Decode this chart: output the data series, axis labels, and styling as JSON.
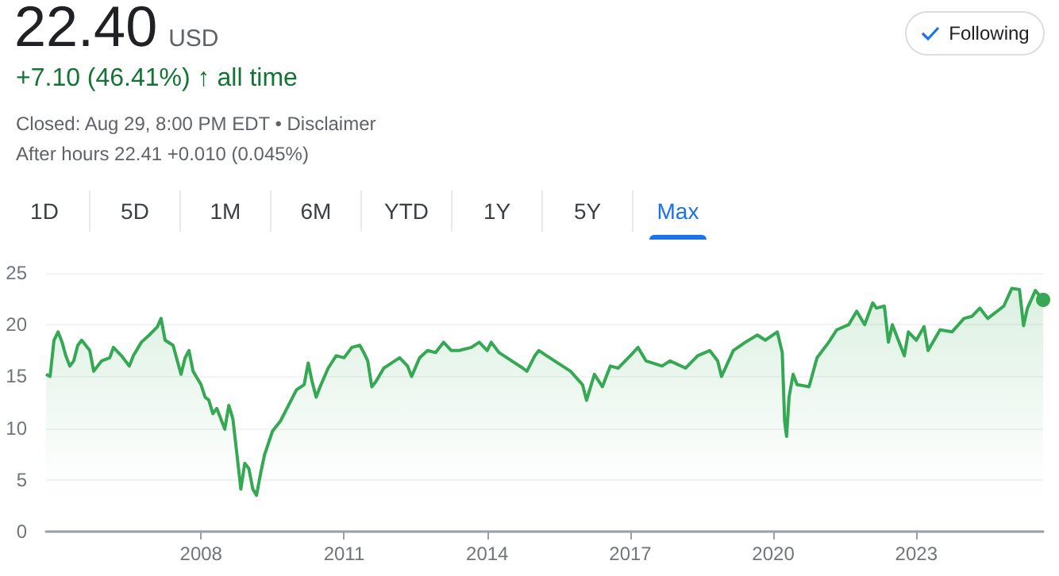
{
  "chart_data": {
    "type": "area",
    "title": "22.40",
    "subtitle": "USD",
    "annotations": [
      "+7.10 (46.41%) ↑ all time",
      "Closed: Aug 29, 8:00 PM EDT • Disclaimer",
      "After hours 22.41 +0.010 (0.045%)",
      "Following",
      "1D",
      "5D",
      "1M",
      "6M",
      "YTD",
      "1Y",
      "5Y",
      "Max"
    ],
    "x": [
      "2004-10",
      "2004-11",
      "2004-12",
      "2005-01",
      "2005-02",
      "2005-03",
      "2005-04",
      "2005-05",
      "2005-06",
      "2005-07",
      "2005-09",
      "2005-10",
      "2005-12",
      "2006-02",
      "2006-03",
      "2006-05",
      "2006-07",
      "2006-08",
      "2006-10",
      "2006-12",
      "2007-02",
      "2007-03",
      "2007-04",
      "2007-06",
      "2007-08",
      "2007-09",
      "2007-10",
      "2007-11",
      "2008-01",
      "2008-02",
      "2008-03",
      "2008-04",
      "2008-05",
      "2008-07",
      "2008-08",
      "2008-09",
      "2008-10",
      "2008-11",
      "2008-12",
      "2009-01",
      "2009-02",
      "2009-03",
      "2009-04",
      "2009-05",
      "2009-07",
      "2009-09",
      "2009-11",
      "2010-01",
      "2010-03",
      "2010-04",
      "2010-05",
      "2010-06",
      "2010-07",
      "2010-09",
      "2010-11",
      "2011-01",
      "2011-03",
      "2011-05",
      "2011-06",
      "2011-07",
      "2011-08",
      "2011-09",
      "2011-11",
      "2012-01",
      "2012-03",
      "2012-05",
      "2012-06",
      "2012-08",
      "2012-10",
      "2012-12",
      "2013-02",
      "2013-04",
      "2013-06",
      "2013-09",
      "2013-11",
      "2014-01",
      "2014-02",
      "2014-04",
      "2014-06",
      "2014-10",
      "2014-11",
      "2015-01",
      "2015-02",
      "2015-04",
      "2015-08",
      "2015-10",
      "2016-01",
      "2016-02",
      "2016-04",
      "2016-06",
      "2016-08",
      "2016-10",
      "2017-01",
      "2017-03",
      "2017-05",
      "2017-09",
      "2017-11",
      "2018-03",
      "2018-06",
      "2018-09",
      "2018-11",
      "2018-12",
      "2019-03",
      "2019-06",
      "2019-09",
      "2019-11",
      "2020-02",
      "2020-03-10",
      "2020-03-28",
      "2020-04-12",
      "2020-05-01",
      "2020-06",
      "2020-07",
      "2020-10",
      "2020-12",
      "2021-03",
      "2021-05",
      "2021-08",
      "2021-10",
      "2021-12",
      "2022-02",
      "2022-03",
      "2022-05",
      "2022-06",
      "2022-07",
      "2022-10",
      "2022-11",
      "2023-01",
      "2023-03",
      "2023-04",
      "2023-07",
      "2023-10",
      "2024-01",
      "2024-03",
      "2024-05",
      "2024-07",
      "2024-11",
      "2025-01",
      "2025-03",
      "2025-04",
      "2025-05",
      "2025-07",
      "2025-08-29"
    ],
    "series": [
      {
        "color": "#34a853",
        "values": [
          15.2,
          15.0,
          18.5,
          19.3,
          18.3,
          17.0,
          16.0,
          16.5,
          18.0,
          18.5,
          17.5,
          15.5,
          16.5,
          16.8,
          17.8,
          17.0,
          16.0,
          17.0,
          18.3,
          19.0,
          19.8,
          20.6,
          18.5,
          18.0,
          15.2,
          16.8,
          17.5,
          15.5,
          14.2,
          13.0,
          12.7,
          11.4,
          11.9,
          9.9,
          12.2,
          10.9,
          7.6,
          4.1,
          6.6,
          6.1,
          4.1,
          3.5,
          5.6,
          7.4,
          9.7,
          10.7,
          12.2,
          13.7,
          14.2,
          16.3,
          14.5,
          13.0,
          14.0,
          15.8,
          17.0,
          16.8,
          17.8,
          18.0,
          17.3,
          16.5,
          14.0,
          14.5,
          15.8,
          16.3,
          16.8,
          16.0,
          15.0,
          16.8,
          17.5,
          17.3,
          18.3,
          17.5,
          17.5,
          17.8,
          18.3,
          17.5,
          18.3,
          17.3,
          16.8,
          15.8,
          15.5,
          17.0,
          17.5,
          17.0,
          16.0,
          15.5,
          14.2,
          12.7,
          15.2,
          14.0,
          16.0,
          15.8,
          17.0,
          17.8,
          16.5,
          16.0,
          16.5,
          15.8,
          17.0,
          17.5,
          16.5,
          15.0,
          17.5,
          18.3,
          19.0,
          18.5,
          19.3,
          17.3,
          10.7,
          9.2,
          13.0,
          15.2,
          14.2,
          14.0,
          16.8,
          18.3,
          19.5,
          20.0,
          21.3,
          20.0,
          22.1,
          21.6,
          21.8,
          18.3,
          20.0,
          17.0,
          19.3,
          18.5,
          19.8,
          17.5,
          19.5,
          19.3,
          20.6,
          20.8,
          21.6,
          20.6,
          21.8,
          23.5,
          23.4,
          19.9,
          21.6,
          23.3,
          22.4
        ]
      }
    ],
    "xlim": [
      "2004-10",
      "2025-08-29"
    ],
    "xticks": [
      "2008",
      "2011",
      "2014",
      "2017",
      "2020",
      "2023"
    ],
    "ylim": [
      0,
      25
    ],
    "yticks": [
      0,
      5,
      10,
      15,
      20,
      25
    ],
    "grid": "y"
  }
}
